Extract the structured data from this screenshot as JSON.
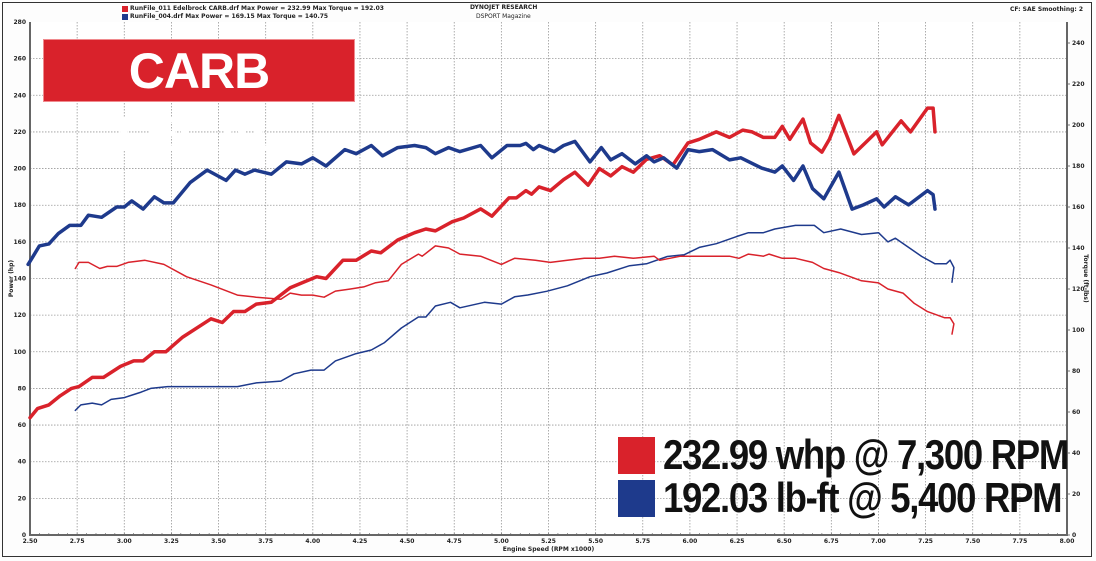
{
  "header": {
    "legend": [
      {
        "text": "RunFile_011 Edelbrock CARB.drf Max Power = 232.99 Max Torque = 192.03",
        "color": "#d9222b"
      },
      {
        "text": "RunFile_004.drf Max Power = 169.15 Max Torque = 140.75",
        "color": "#1e3a8c"
      }
    ],
    "title_line1": "DYNOJET RESEARCH",
    "title_line2": "DSPORT Magazine",
    "settings": "CF: SAE  Smoothing: 2"
  },
  "overlay": {
    "badge": "CARB LEGAL",
    "badge_color": "#d9222b",
    "captions": [
      {
        "text": "232.99 whp @ 7,300 RPM",
        "color": "#d9222b"
      },
      {
        "text": "192.03 lb-ft @ 5,400 RPM",
        "color": "#1e3a8c"
      }
    ]
  },
  "chart_data": {
    "type": "line",
    "xlabel": "Engine Speed (RPM x1000)",
    "ylabel_left": "Power (hp)",
    "ylabel_right": "Torque (ft-lbs)",
    "xlim": [
      2.5,
      8.0
    ],
    "ylim_left": [
      0,
      280
    ],
    "ylim_right": [
      0,
      240
    ],
    "x_ticks": [
      "2.50",
      "2.75",
      "3.00",
      "3.25",
      "3.50",
      "3.75",
      "4.00",
      "4.25",
      "4.50",
      "4.75",
      "5.00",
      "5.25",
      "5.50",
      "5.75",
      "6.00",
      "6.25",
      "6.50",
      "6.75",
      "7.00",
      "7.25",
      "7.50",
      "7.75",
      "8.00"
    ],
    "y_ticks_left": [
      "0",
      "20",
      "40",
      "60",
      "80",
      "100",
      "120",
      "140",
      "160",
      "180",
      "200",
      "220",
      "240",
      "260",
      "280"
    ],
    "y_ticks_right": [
      "0",
      "20",
      "40",
      "60",
      "80",
      "100",
      "120",
      "140",
      "160",
      "180",
      "200",
      "220",
      "240"
    ],
    "grid": true,
    "series": [
      {
        "run": 0,
        "measure": "power",
        "axis": "left",
        "color": "#d9222b",
        "weight": "thick",
        "points": [
          [
            2.5,
            64
          ],
          [
            2.54,
            69
          ],
          [
            2.6,
            71
          ],
          [
            2.66,
            76
          ],
          [
            2.72,
            80
          ],
          [
            2.76,
            81
          ],
          [
            2.83,
            86
          ],
          [
            2.89,
            86
          ],
          [
            2.98,
            92
          ],
          [
            3.05,
            95
          ],
          [
            3.1,
            95
          ],
          [
            3.16,
            100
          ],
          [
            3.22,
            100
          ],
          [
            3.31,
            108
          ],
          [
            3.46,
            118
          ],
          [
            3.52,
            116
          ],
          [
            3.58,
            122
          ],
          [
            3.64,
            122
          ],
          [
            3.7,
            126
          ],
          [
            3.78,
            127
          ],
          [
            3.88,
            135
          ],
          [
            4.02,
            141
          ],
          [
            4.07,
            140
          ],
          [
            4.16,
            150
          ],
          [
            4.23,
            150
          ],
          [
            4.31,
            155
          ],
          [
            4.36,
            154
          ],
          [
            4.45,
            161
          ],
          [
            4.54,
            165
          ],
          [
            4.6,
            167
          ],
          [
            4.65,
            166
          ],
          [
            4.74,
            171
          ],
          [
            4.8,
            173
          ],
          [
            4.89,
            178
          ],
          [
            4.95,
            174
          ],
          [
            5.04,
            184
          ],
          [
            5.08,
            184
          ],
          [
            5.13,
            188
          ],
          [
            5.16,
            186
          ],
          [
            5.2,
            190
          ],
          [
            5.26,
            188
          ],
          [
            5.33,
            194
          ],
          [
            5.39,
            198
          ],
          [
            5.46,
            191
          ],
          [
            5.52,
            200
          ],
          [
            5.58,
            196
          ],
          [
            5.64,
            201
          ],
          [
            5.7,
            198
          ],
          [
            5.77,
            205
          ],
          [
            5.84,
            207
          ],
          [
            5.91,
            202
          ],
          [
            5.99,
            214
          ],
          [
            6.05,
            216
          ],
          [
            6.14,
            220
          ],
          [
            6.21,
            217
          ],
          [
            6.28,
            221
          ],
          [
            6.33,
            220
          ],
          [
            6.39,
            217
          ],
          [
            6.45,
            217
          ],
          [
            6.49,
            223
          ],
          [
            6.53,
            216
          ],
          [
            6.6,
            227
          ],
          [
            6.64,
            214
          ],
          [
            6.7,
            209
          ],
          [
            6.74,
            216
          ],
          [
            6.79,
            229
          ],
          [
            6.87,
            208
          ],
          [
            6.93,
            214
          ],
          [
            6.99,
            220
          ],
          [
            7.02,
            213
          ],
          [
            7.12,
            226
          ],
          [
            7.17,
            220
          ],
          [
            7.26,
            233
          ],
          [
            7.29,
            233
          ],
          [
            7.3,
            220
          ]
        ]
      },
      {
        "run": 0,
        "measure": "torque",
        "axis": "right",
        "color": "#1e3a8c",
        "weight": "thick",
        "points": [
          [
            2.49,
            132
          ],
          [
            2.51,
            135
          ],
          [
            2.55,
            141
          ],
          [
            2.6,
            142
          ],
          [
            2.65,
            147
          ],
          [
            2.71,
            151
          ],
          [
            2.77,
            151
          ],
          [
            2.81,
            156
          ],
          [
            2.88,
            155
          ],
          [
            2.96,
            160
          ],
          [
            3.0,
            160
          ],
          [
            3.04,
            163
          ],
          [
            3.1,
            159
          ],
          [
            3.16,
            165
          ],
          [
            3.21,
            162
          ],
          [
            3.26,
            162
          ],
          [
            3.35,
            172
          ],
          [
            3.44,
            178
          ],
          [
            3.54,
            173
          ],
          [
            3.59,
            178
          ],
          [
            3.64,
            176
          ],
          [
            3.69,
            178
          ],
          [
            3.78,
            176
          ],
          [
            3.86,
            182
          ],
          [
            3.94,
            181
          ],
          [
            4.0,
            184
          ],
          [
            4.07,
            180
          ],
          [
            4.17,
            188
          ],
          [
            4.23,
            186
          ],
          [
            4.31,
            190
          ],
          [
            4.37,
            185
          ],
          [
            4.45,
            189
          ],
          [
            4.54,
            190
          ],
          [
            4.6,
            189
          ],
          [
            4.65,
            186
          ],
          [
            4.72,
            189
          ],
          [
            4.78,
            187
          ],
          [
            4.89,
            190
          ],
          [
            4.95,
            184
          ],
          [
            5.03,
            190
          ],
          [
            5.1,
            190
          ],
          [
            5.13,
            191
          ],
          [
            5.17,
            188
          ],
          [
            5.2,
            190
          ],
          [
            5.28,
            187
          ],
          [
            5.33,
            190
          ],
          [
            5.39,
            192
          ],
          [
            5.47,
            182
          ],
          [
            5.53,
            189
          ],
          [
            5.58,
            183
          ],
          [
            5.64,
            186
          ],
          [
            5.71,
            181
          ],
          [
            5.77,
            185
          ],
          [
            5.81,
            182
          ],
          [
            5.86,
            184
          ],
          [
            5.93,
            179
          ],
          [
            5.99,
            188
          ],
          [
            6.05,
            187
          ],
          [
            6.12,
            188
          ],
          [
            6.21,
            183
          ],
          [
            6.27,
            184
          ],
          [
            6.38,
            179
          ],
          [
            6.45,
            177
          ],
          [
            6.49,
            180
          ],
          [
            6.55,
            173
          ],
          [
            6.6,
            180
          ],
          [
            6.65,
            169
          ],
          [
            6.71,
            164
          ],
          [
            6.79,
            177
          ],
          [
            6.86,
            159
          ],
          [
            6.92,
            161
          ],
          [
            6.99,
            164
          ],
          [
            7.03,
            160
          ],
          [
            7.09,
            165
          ],
          [
            7.16,
            161
          ],
          [
            7.26,
            168
          ],
          [
            7.29,
            166
          ],
          [
            7.3,
            159
          ]
        ]
      },
      {
        "run": 1,
        "measure": "power",
        "axis": "left",
        "color": "#1e3a8c",
        "weight": "thin",
        "points": [
          [
            2.74,
            68
          ],
          [
            2.77,
            71
          ],
          [
            2.83,
            72
          ],
          [
            2.88,
            71
          ],
          [
            2.93,
            74
          ],
          [
            3.0,
            75
          ],
          [
            3.09,
            78
          ],
          [
            3.14,
            80
          ],
          [
            3.23,
            81
          ],
          [
            3.35,
            81
          ],
          [
            3.48,
            81
          ],
          [
            3.6,
            81
          ],
          [
            3.7,
            83
          ],
          [
            3.83,
            84
          ],
          [
            3.9,
            88
          ],
          [
            3.99,
            90
          ],
          [
            4.06,
            90
          ],
          [
            4.12,
            95
          ],
          [
            4.23,
            99
          ],
          [
            4.31,
            101
          ],
          [
            4.38,
            105
          ],
          [
            4.47,
            113
          ],
          [
            4.56,
            119
          ],
          [
            4.6,
            119
          ],
          [
            4.65,
            125
          ],
          [
            4.73,
            127
          ],
          [
            4.78,
            124
          ],
          [
            4.91,
            127
          ],
          [
            5.0,
            126
          ],
          [
            5.07,
            130
          ],
          [
            5.14,
            131
          ],
          [
            5.24,
            133
          ],
          [
            5.35,
            136
          ],
          [
            5.47,
            141
          ],
          [
            5.56,
            143
          ],
          [
            5.68,
            147
          ],
          [
            5.77,
            148
          ],
          [
            5.88,
            152
          ],
          [
            5.97,
            153
          ],
          [
            6.05,
            157
          ],
          [
            6.14,
            159
          ],
          [
            6.25,
            163
          ],
          [
            6.31,
            165
          ],
          [
            6.39,
            165
          ],
          [
            6.45,
            167
          ],
          [
            6.56,
            169
          ],
          [
            6.66,
            169
          ],
          [
            6.71,
            165
          ],
          [
            6.8,
            167
          ],
          [
            6.91,
            164
          ],
          [
            7.0,
            165
          ],
          [
            7.05,
            160
          ],
          [
            7.09,
            162
          ],
          [
            7.16,
            157
          ],
          [
            7.23,
            152
          ],
          [
            7.3,
            148
          ],
          [
            7.36,
            148
          ],
          [
            7.38,
            150
          ],
          [
            7.4,
            146
          ],
          [
            7.39,
            138
          ]
        ]
      },
      {
        "run": 1,
        "measure": "torque",
        "axis": "right",
        "color": "#d9222b",
        "weight": "thin",
        "points": [
          [
            2.74,
            130
          ],
          [
            2.76,
            133
          ],
          [
            2.81,
            133
          ],
          [
            2.87,
            130
          ],
          [
            2.91,
            131
          ],
          [
            2.96,
            131
          ],
          [
            3.02,
            133
          ],
          [
            3.11,
            134
          ],
          [
            3.21,
            132
          ],
          [
            3.33,
            126
          ],
          [
            3.46,
            122
          ],
          [
            3.6,
            117
          ],
          [
            3.7,
            116
          ],
          [
            3.83,
            115
          ],
          [
            3.88,
            118
          ],
          [
            3.94,
            117
          ],
          [
            4.0,
            117
          ],
          [
            4.06,
            116
          ],
          [
            4.12,
            119
          ],
          [
            4.2,
            120
          ],
          [
            4.27,
            121
          ],
          [
            4.33,
            123
          ],
          [
            4.4,
            124
          ],
          [
            4.47,
            132
          ],
          [
            4.56,
            137
          ],
          [
            4.58,
            136
          ],
          [
            4.65,
            141
          ],
          [
            4.72,
            140
          ],
          [
            4.78,
            137
          ],
          [
            4.89,
            136
          ],
          [
            5.0,
            132
          ],
          [
            5.07,
            135
          ],
          [
            5.18,
            134
          ],
          [
            5.26,
            133
          ],
          [
            5.35,
            134
          ],
          [
            5.44,
            135
          ],
          [
            5.52,
            135
          ],
          [
            5.6,
            136
          ],
          [
            5.7,
            135
          ],
          [
            5.81,
            136
          ],
          [
            5.84,
            134
          ],
          [
            5.95,
            136
          ],
          [
            6.05,
            136
          ],
          [
            6.14,
            136
          ],
          [
            6.21,
            136
          ],
          [
            6.26,
            135
          ],
          [
            6.31,
            137
          ],
          [
            6.39,
            136
          ],
          [
            6.42,
            137
          ],
          [
            6.49,
            135
          ],
          [
            6.56,
            135
          ],
          [
            6.65,
            133
          ],
          [
            6.71,
            130
          ],
          [
            6.79,
            128
          ],
          [
            6.91,
            124
          ],
          [
            7.0,
            123
          ],
          [
            7.05,
            120
          ],
          [
            7.13,
            118
          ],
          [
            7.19,
            113
          ],
          [
            7.26,
            109
          ],
          [
            7.35,
            106
          ],
          [
            7.38,
            106
          ],
          [
            7.4,
            103
          ],
          [
            7.39,
            98
          ]
        ]
      }
    ]
  }
}
